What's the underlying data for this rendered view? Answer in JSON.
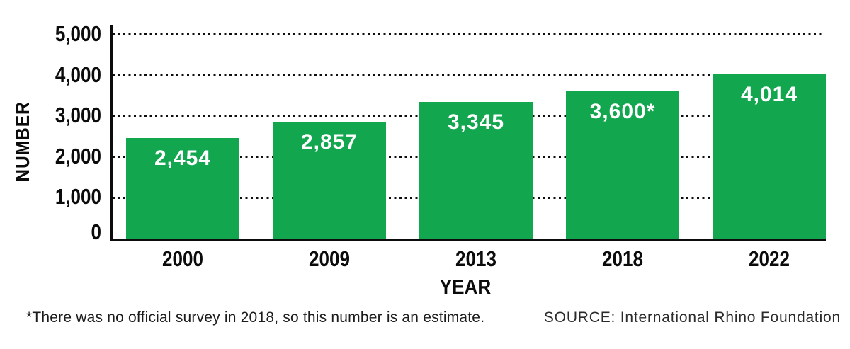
{
  "chart_data": {
    "type": "bar",
    "title": "",
    "categories": [
      "2000",
      "2009",
      "2013",
      "2018",
      "2022"
    ],
    "values": [
      2454,
      2857,
      3345,
      3600,
      4014
    ],
    "bar_labels": [
      "2,454",
      "2,857",
      "3,345",
      "3,600*",
      "4,014"
    ],
    "xlabel": "YEAR",
    "ylabel": "NUMBER",
    "ylim": [
      0,
      5000
    ],
    "yticks": [
      0,
      1000,
      2000,
      3000,
      4000,
      5000
    ],
    "ytick_labels": [
      "0",
      "1,000",
      "2,000",
      "3,000",
      "4,000",
      "5,000"
    ],
    "grid": "horizontal dotted lines at each y tick, behind bars",
    "legend": "none",
    "bar_color": "#12a64f",
    "bar_label_color": "#ffffff",
    "axis_color": "#0c0c0c",
    "annotation": "asterisk on 2018 value indicates estimate"
  },
  "footer": {
    "footnote": "*There was no official survey in 2018, so this number is an estimate.",
    "source": "SOURCE: International Rhino Foundation"
  }
}
